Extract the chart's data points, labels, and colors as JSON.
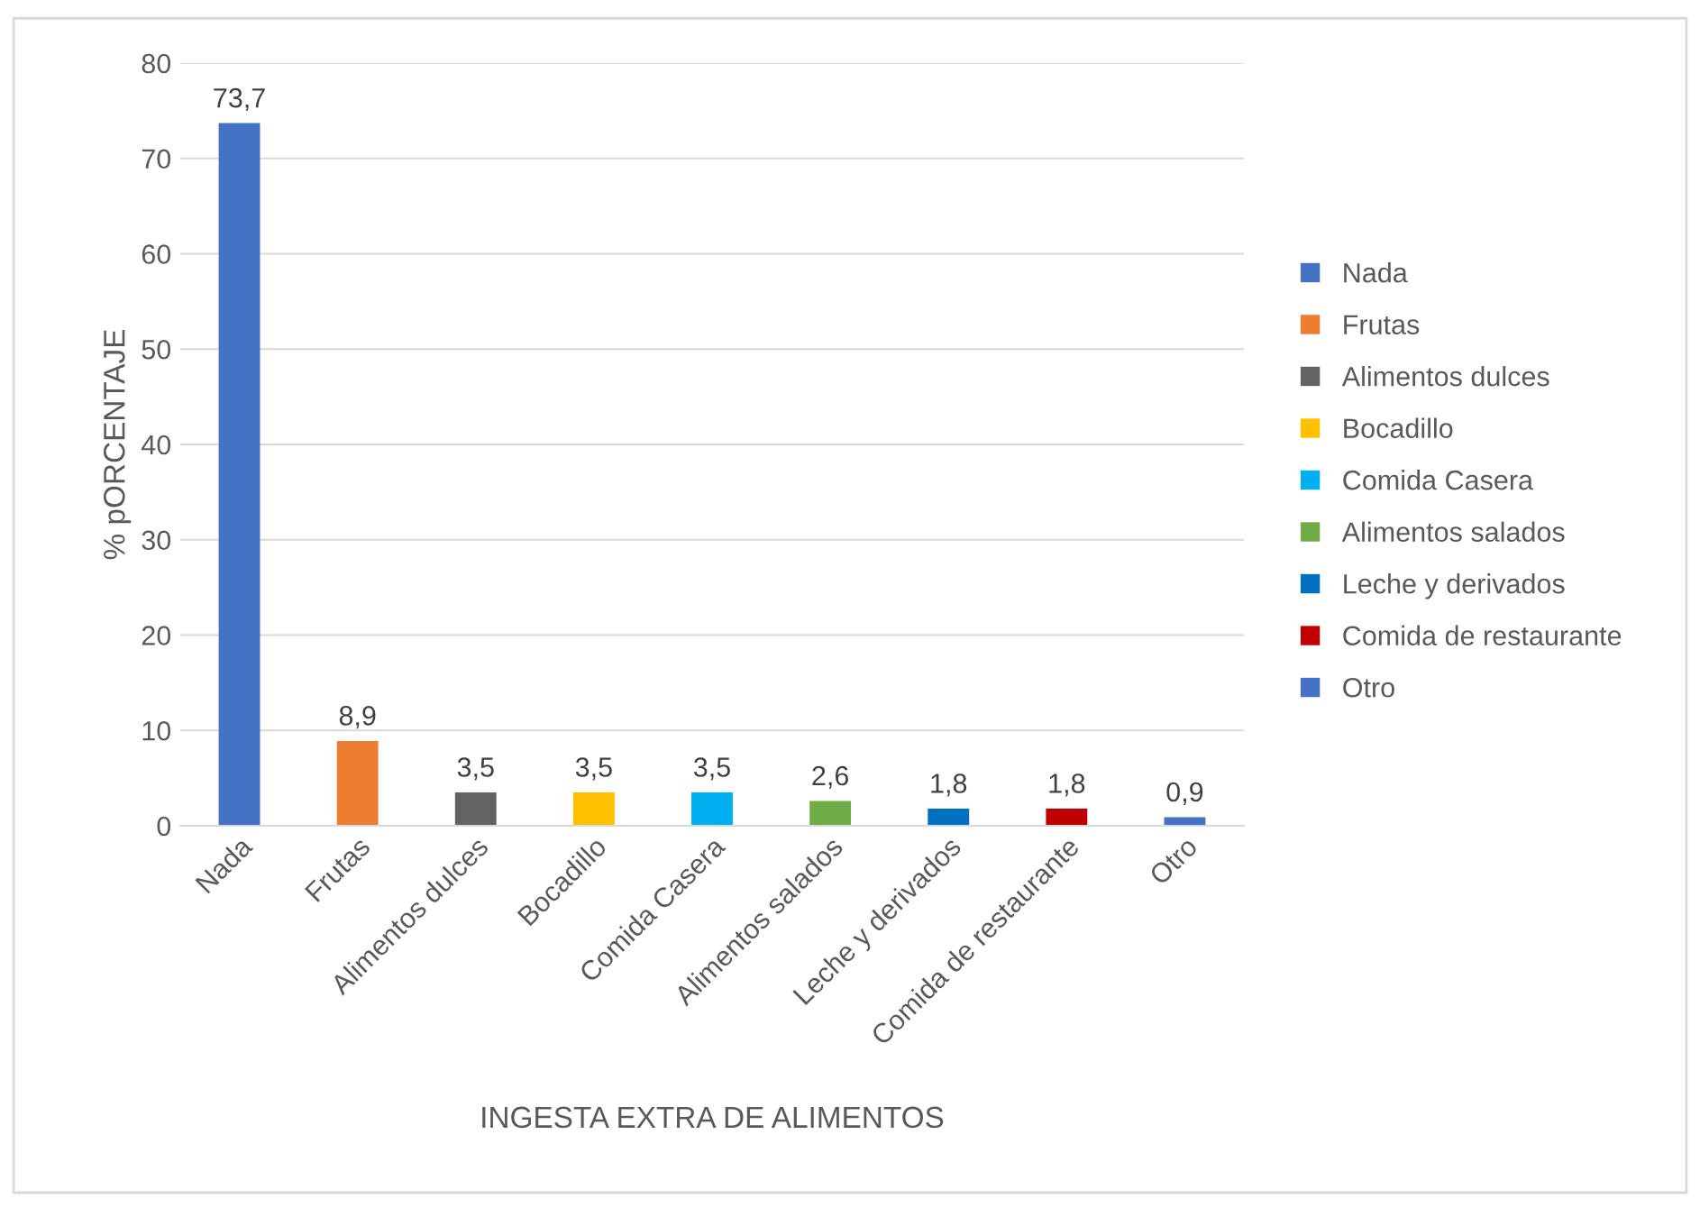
{
  "chart_data": {
    "type": "bar",
    "categories": [
      "Nada",
      "Frutas",
      "Alimentos dulces",
      "Bocadillo",
      "Comida Casera",
      "Alimentos salados",
      "Leche y derivados",
      "Comida de restaurante",
      "Otro"
    ],
    "series": [
      {
        "name": "Nada",
        "color": "#4472c4",
        "values": [
          73.7,
          null,
          null,
          null,
          null,
          null,
          null,
          null,
          null
        ],
        "value_labels": [
          "73,7",
          null,
          null,
          null,
          null,
          null,
          null,
          null,
          null
        ]
      },
      {
        "name": "Frutas",
        "color": "#ed7d31",
        "values": [
          null,
          8.9,
          null,
          null,
          null,
          null,
          null,
          null,
          null
        ],
        "value_labels": [
          null,
          "8,9",
          null,
          null,
          null,
          null,
          null,
          null,
          null
        ]
      },
      {
        "name": "Alimentos dulces",
        "color": "#636363",
        "values": [
          null,
          null,
          3.5,
          null,
          null,
          null,
          null,
          null,
          null
        ],
        "value_labels": [
          null,
          null,
          "3,5",
          null,
          null,
          null,
          null,
          null,
          null
        ]
      },
      {
        "name": "Bocadillo",
        "color": "#ffc000",
        "values": [
          null,
          null,
          null,
          3.5,
          null,
          null,
          null,
          null,
          null
        ],
        "value_labels": [
          null,
          null,
          null,
          "3,5",
          null,
          null,
          null,
          null,
          null
        ]
      },
      {
        "name": "Comida Casera",
        "color": "#00b0f0",
        "values": [
          null,
          null,
          null,
          null,
          3.5,
          null,
          null,
          null,
          null
        ],
        "value_labels": [
          null,
          null,
          null,
          null,
          "3,5",
          null,
          null,
          null,
          null
        ]
      },
      {
        "name": "Alimentos salados",
        "color": "#70ad47",
        "values": [
          null,
          null,
          null,
          null,
          null,
          2.6,
          null,
          null,
          null
        ],
        "value_labels": [
          null,
          null,
          null,
          null,
          null,
          "2,6",
          null,
          null,
          null
        ]
      },
      {
        "name": "Leche y derivados",
        "color": "#0070c0",
        "values": [
          null,
          null,
          null,
          null,
          null,
          null,
          1.8,
          null,
          null
        ],
        "value_labels": [
          null,
          null,
          null,
          null,
          null,
          null,
          "1,8",
          null,
          null
        ]
      },
      {
        "name": "Comida de restaurante",
        "color": "#c00000",
        "values": [
          null,
          null,
          null,
          null,
          null,
          null,
          null,
          1.8,
          null
        ],
        "value_labels": [
          null,
          null,
          null,
          null,
          null,
          null,
          null,
          "1,8",
          null
        ]
      },
      {
        "name": "Otro",
        "color": "#4472c4",
        "values": [
          null,
          null,
          null,
          null,
          null,
          null,
          null,
          null,
          0.9
        ],
        "value_labels": [
          null,
          null,
          null,
          null,
          null,
          null,
          null,
          null,
          "0,9"
        ]
      }
    ],
    "xlabel": "INGESTA EXTRA DE ALIMENTOS",
    "ylabel": "% pORCENTAJE",
    "ylim": [
      0,
      80
    ],
    "yticks": [
      0,
      10,
      20,
      30,
      40,
      50,
      60,
      70,
      80
    ],
    "grid": "y",
    "legend": "right"
  }
}
